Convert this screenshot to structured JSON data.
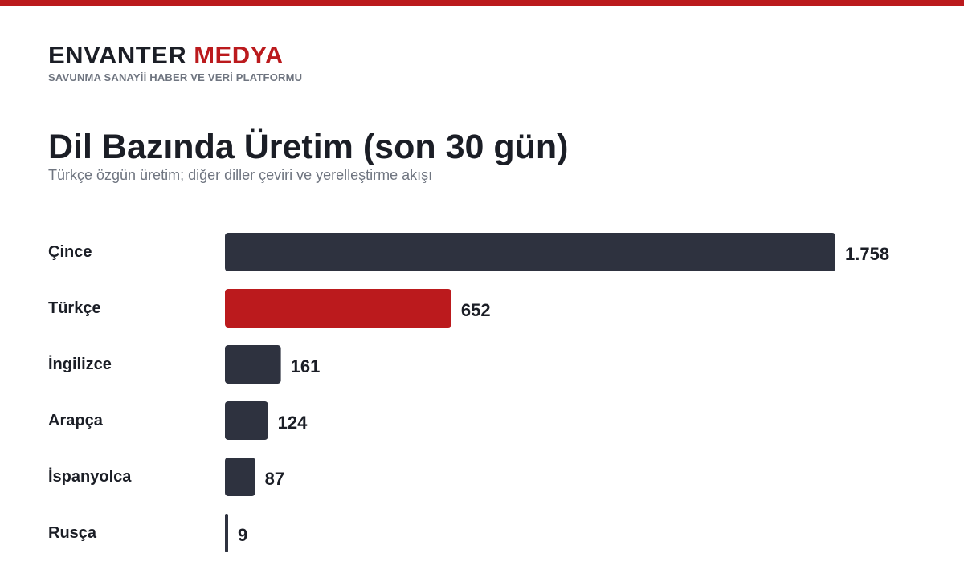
{
  "brand": {
    "name": "ENVANTER",
    "accent": "MEDYA",
    "tagline": "SAVUNMA SANAYİİ HABER VE VERİ PLATFORMU"
  },
  "colors": {
    "accent": "#bb1a1d",
    "bar_default": "#2e323f",
    "bar_highlight": "#bb1a1d",
    "text": "#1b1e26",
    "muted": "#6f7580"
  },
  "chart_data": {
    "type": "bar",
    "orientation": "horizontal",
    "title": "Dil Bazında Üretim (son 30 gün)",
    "subtitle": "Türkçe özgün üretim; diğer diller çeviri ve yerelleştirme akışı",
    "categories": [
      "Çince",
      "Türkçe",
      "İngilizce",
      "Arapça",
      "İspanyolca",
      "Rusça"
    ],
    "values": [
      1758,
      652,
      161,
      124,
      87,
      9
    ],
    "value_labels": [
      "1.758",
      "652",
      "161",
      "124",
      "87",
      "9"
    ],
    "highlight": "Türkçe",
    "xlim": [
      0,
      1758
    ],
    "grid": false,
    "legend": "none"
  }
}
